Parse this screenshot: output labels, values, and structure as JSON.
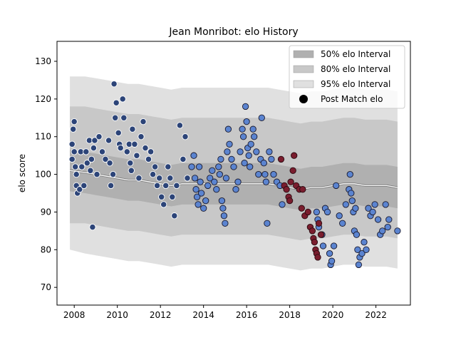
{
  "chart_data": {
    "type": "scatter",
    "title": "Jean Monribot: elo History",
    "xlabel": "",
    "ylabel": "elo score",
    "xlim": [
      2007.2,
      2023.6
    ],
    "ylim": [
      65.3,
      135.3
    ],
    "xticks": [
      2008,
      2010,
      2012,
      2014,
      2016,
      2018,
      2020,
      2022
    ],
    "yticks": [
      70,
      80,
      90,
      100,
      110,
      120,
      130
    ],
    "grid": false,
    "legend_position": "top-right",
    "legend": [
      {
        "label": "50% elo Interval",
        "kind": "band",
        "color": "#b0b0b0"
      },
      {
        "label": "80% elo Interval",
        "kind": "band",
        "color": "#c8c8c8"
      },
      {
        "label": "95% elo Interval",
        "kind": "band",
        "color": "#e0e0e0"
      },
      {
        "label": "Post Match elo",
        "kind": "marker",
        "color": "#000000"
      }
    ],
    "bands": {
      "x": [
        2007.8,
        2008.5,
        2009.0,
        2009.5,
        2010.0,
        2010.5,
        2011.0,
        2011.5,
        2012.0,
        2012.5,
        2013.0,
        2013.5,
        2014.0,
        2014.5,
        2015.0,
        2015.5,
        2016.0,
        2016.5,
        2017.0,
        2017.5,
        2018.0,
        2018.5,
        2019.0,
        2019.5,
        2020.0,
        2020.5,
        2021.0,
        2021.5,
        2022.0,
        2022.5,
        2023.0
      ],
      "center": [
        101,
        100.5,
        100,
        99.5,
        99,
        98.5,
        98.5,
        98,
        97.5,
        97,
        97.5,
        97.5,
        97.5,
        97.5,
        97.5,
        97.5,
        97.5,
        97.5,
        97.5,
        97,
        96.5,
        96,
        96.5,
        96.5,
        97,
        97.5,
        97.5,
        97,
        97,
        97,
        96.5
      ],
      "p50": [
        [
          95.5,
          106.5
        ],
        [
          95,
          106
        ],
        [
          94.5,
          105.5
        ],
        [
          94,
          105
        ],
        [
          93.5,
          104.5
        ],
        [
          93,
          104
        ],
        [
          93,
          104
        ],
        [
          92.5,
          103.5
        ],
        [
          92,
          103
        ],
        [
          91.5,
          102.5
        ],
        [
          92,
          103
        ],
        [
          92,
          103
        ],
        [
          92,
          103
        ],
        [
          92,
          103
        ],
        [
          92,
          103
        ],
        [
          92,
          103
        ],
        [
          92,
          103
        ],
        [
          92,
          103
        ],
        [
          92,
          103
        ],
        [
          91.5,
          102.5
        ],
        [
          91,
          102
        ],
        [
          90.5,
          101.5
        ],
        [
          91,
          102
        ],
        [
          91,
          102
        ],
        [
          91.5,
          102.5
        ],
        [
          92,
          103
        ],
        [
          92,
          103
        ],
        [
          91.5,
          102.5
        ],
        [
          91.5,
          102.5
        ],
        [
          91.5,
          102.5
        ],
        [
          91,
          102
        ]
      ],
      "p80": [
        [
          87,
          118
        ],
        [
          87,
          118
        ],
        [
          86.5,
          117.5
        ],
        [
          86,
          117
        ],
        [
          85.5,
          116.5
        ],
        [
          85,
          116
        ],
        [
          85,
          116
        ],
        [
          84.5,
          115.5
        ],
        [
          84,
          115
        ],
        [
          83.5,
          114.5
        ],
        [
          84,
          115
        ],
        [
          84,
          115
        ],
        [
          84,
          115
        ],
        [
          84,
          115
        ],
        [
          84,
          115
        ],
        [
          84,
          115
        ],
        [
          84,
          115
        ],
        [
          84,
          115
        ],
        [
          84,
          115
        ],
        [
          83.5,
          114.5
        ],
        [
          83,
          114
        ],
        [
          82.5,
          113.5
        ],
        [
          83,
          114
        ],
        [
          83,
          114
        ],
        [
          83.5,
          114.5
        ],
        [
          84,
          115
        ],
        [
          84,
          115
        ],
        [
          83.5,
          114.5
        ],
        [
          83.5,
          114.5
        ],
        [
          83.5,
          114.5
        ],
        [
          83,
          114
        ]
      ],
      "p95": [
        [
          80,
          126
        ],
        [
          79,
          126
        ],
        [
          78.5,
          125.5
        ],
        [
          78,
          125
        ],
        [
          77.5,
          124.5
        ],
        [
          77,
          124
        ],
        [
          77,
          124
        ],
        [
          76.5,
          123.5
        ],
        [
          76,
          123
        ],
        [
          75.5,
          122.5
        ],
        [
          76,
          123
        ],
        [
          76,
          123
        ],
        [
          76,
          123
        ],
        [
          76,
          123
        ],
        [
          76,
          123
        ],
        [
          76,
          123
        ],
        [
          76,
          123
        ],
        [
          76,
          123
        ],
        [
          76,
          123
        ],
        [
          75.5,
          122.5
        ],
        [
          75,
          122
        ],
        [
          74.5,
          121.5
        ],
        [
          75,
          122
        ],
        [
          75,
          122
        ],
        [
          75.5,
          122.5
        ],
        [
          76,
          123
        ],
        [
          76,
          123
        ],
        [
          75.5,
          122.5
        ],
        [
          75.5,
          122.5
        ],
        [
          75.5,
          122.5
        ],
        [
          75,
          122
        ]
      ]
    },
    "series": [
      {
        "color": "#2c4478",
        "edge": "#ffffff",
        "points": [
          [
            2007.9,
            104
          ],
          [
            2007.9,
            108
          ],
          [
            2007.95,
            112
          ],
          [
            2008.0,
            114
          ],
          [
            2008.0,
            106
          ],
          [
            2008.05,
            102
          ],
          [
            2008.1,
            100
          ],
          [
            2008.1,
            97
          ],
          [
            2008.15,
            95
          ],
          [
            2008.25,
            96
          ],
          [
            2008.3,
            106
          ],
          [
            2008.35,
            102
          ],
          [
            2008.45,
            97
          ],
          [
            2008.55,
            106
          ],
          [
            2008.6,
            103
          ],
          [
            2008.7,
            109
          ],
          [
            2008.75,
            101
          ],
          [
            2008.8,
            104
          ],
          [
            2008.85,
            86
          ],
          [
            2008.9,
            107
          ],
          [
            2008.95,
            109
          ],
          [
            2009.05,
            100
          ],
          [
            2009.15,
            110
          ],
          [
            2009.3,
            106
          ],
          [
            2009.45,
            104
          ],
          [
            2009.6,
            109
          ],
          [
            2009.65,
            103
          ],
          [
            2009.7,
            97
          ],
          [
            2009.8,
            100
          ],
          [
            2009.85,
            124
          ],
          [
            2009.9,
            115
          ],
          [
            2009.95,
            119
          ],
          [
            2010.05,
            111
          ],
          [
            2010.1,
            108
          ],
          [
            2010.15,
            107
          ],
          [
            2010.25,
            120
          ],
          [
            2010.3,
            115
          ],
          [
            2010.45,
            106
          ],
          [
            2010.55,
            108
          ],
          [
            2010.6,
            103
          ],
          [
            2010.65,
            101
          ],
          [
            2010.7,
            112
          ],
          [
            2010.8,
            108
          ],
          [
            2010.9,
            105
          ],
          [
            2011.0,
            99
          ],
          [
            2011.1,
            110
          ],
          [
            2011.2,
            114
          ],
          [
            2011.3,
            107
          ],
          [
            2011.45,
            104
          ],
          [
            2011.55,
            106
          ],
          [
            2011.65,
            100
          ],
          [
            2011.75,
            102
          ],
          [
            2011.85,
            97
          ],
          [
            2011.95,
            99
          ],
          [
            2012.05,
            94
          ],
          [
            2012.15,
            92
          ],
          [
            2012.25,
            97
          ],
          [
            2012.35,
            102
          ],
          [
            2012.45,
            99
          ],
          [
            2012.55,
            94
          ],
          [
            2012.65,
            89
          ],
          [
            2012.75,
            97
          ],
          [
            2012.9,
            113
          ],
          [
            2013.05,
            104
          ],
          [
            2013.15,
            110
          ],
          [
            2013.25,
            99
          ]
        ]
      },
      {
        "color": "#5b84d0",
        "edge": "#1a1a2e",
        "points": [
          [
            2013.45,
            102
          ],
          [
            2013.55,
            105
          ],
          [
            2013.6,
            99
          ],
          [
            2013.65,
            96
          ],
          [
            2013.7,
            94
          ],
          [
            2013.75,
            92
          ],
          [
            2013.8,
            102
          ],
          [
            2013.85,
            98
          ],
          [
            2013.9,
            95
          ],
          [
            2014.0,
            91
          ],
          [
            2014.1,
            93
          ],
          [
            2014.2,
            97
          ],
          [
            2014.3,
            99
          ],
          [
            2014.4,
            101
          ],
          [
            2014.5,
            98
          ],
          [
            2014.6,
            96
          ],
          [
            2014.7,
            102
          ],
          [
            2014.75,
            100
          ],
          [
            2014.8,
            104
          ],
          [
            2014.85,
            93
          ],
          [
            2014.9,
            91
          ],
          [
            2014.95,
            89
          ],
          [
            2015.0,
            87
          ],
          [
            2015.05,
            99
          ],
          [
            2015.1,
            106
          ],
          [
            2015.15,
            112
          ],
          [
            2015.2,
            108
          ],
          [
            2015.3,
            104
          ],
          [
            2015.4,
            102
          ],
          [
            2015.5,
            96
          ],
          [
            2015.6,
            98
          ],
          [
            2015.7,
            106
          ],
          [
            2015.8,
            112
          ],
          [
            2015.85,
            110
          ],
          [
            2015.9,
            103
          ],
          [
            2015.95,
            118
          ],
          [
            2016.0,
            114
          ],
          [
            2016.05,
            107
          ],
          [
            2016.1,
            105
          ],
          [
            2016.15,
            102
          ],
          [
            2016.2,
            108
          ],
          [
            2016.3,
            112
          ],
          [
            2016.35,
            110
          ],
          [
            2016.45,
            106
          ],
          [
            2016.55,
            100
          ],
          [
            2016.65,
            104
          ],
          [
            2016.7,
            115
          ],
          [
            2016.8,
            103
          ],
          [
            2016.85,
            100
          ],
          [
            2016.9,
            98
          ],
          [
            2016.95,
            87
          ],
          [
            2017.05,
            106
          ],
          [
            2017.15,
            104
          ],
          [
            2017.25,
            100
          ],
          [
            2017.4,
            98
          ],
          [
            2017.55,
            97
          ],
          [
            2017.65,
            92
          ],
          [
            2019.25,
            90
          ],
          [
            2019.3,
            88
          ],
          [
            2019.35,
            86
          ],
          [
            2019.5,
            84
          ],
          [
            2019.55,
            81
          ],
          [
            2019.65,
            91
          ],
          [
            2019.75,
            90
          ],
          [
            2019.85,
            79
          ],
          [
            2019.9,
            76
          ],
          [
            2019.95,
            77
          ],
          [
            2020.05,
            81
          ],
          [
            2020.15,
            97
          ],
          [
            2020.3,
            89
          ],
          [
            2020.45,
            87
          ],
          [
            2020.6,
            92
          ],
          [
            2020.75,
            96
          ],
          [
            2020.8,
            100
          ],
          [
            2020.85,
            95
          ],
          [
            2020.9,
            93
          ],
          [
            2020.95,
            90
          ],
          [
            2021.0,
            85
          ],
          [
            2021.05,
            91
          ],
          [
            2021.1,
            84
          ],
          [
            2021.15,
            80
          ],
          [
            2021.2,
            76
          ],
          [
            2021.25,
            78
          ],
          [
            2021.35,
            79
          ],
          [
            2021.45,
            82
          ],
          [
            2021.55,
            80
          ],
          [
            2021.65,
            91
          ],
          [
            2021.75,
            89
          ],
          [
            2021.85,
            90
          ],
          [
            2021.95,
            92
          ],
          [
            2022.1,
            88
          ],
          [
            2022.2,
            84
          ],
          [
            2022.3,
            85
          ],
          [
            2022.45,
            92
          ],
          [
            2022.55,
            86
          ],
          [
            2022.6,
            88
          ],
          [
            2023.0,
            85
          ]
        ]
      },
      {
        "color": "#7a1d2e",
        "edge": "#2a0a10",
        "points": [
          [
            2017.6,
            104
          ],
          [
            2017.75,
            97
          ],
          [
            2017.85,
            96
          ],
          [
            2017.95,
            94
          ],
          [
            2018.0,
            93
          ],
          [
            2018.05,
            98
          ],
          [
            2018.15,
            101
          ],
          [
            2018.2,
            105
          ],
          [
            2018.3,
            97
          ],
          [
            2018.45,
            96
          ],
          [
            2018.55,
            91
          ],
          [
            2018.6,
            96
          ],
          [
            2018.7,
            89
          ],
          [
            2018.85,
            90
          ],
          [
            2018.95,
            86
          ],
          [
            2019.05,
            85
          ],
          [
            2019.1,
            83
          ],
          [
            2019.15,
            82
          ],
          [
            2019.2,
            80
          ],
          [
            2019.25,
            79
          ],
          [
            2019.3,
            78
          ],
          [
            2019.35,
            87
          ],
          [
            2019.45,
            84
          ]
        ]
      }
    ]
  }
}
